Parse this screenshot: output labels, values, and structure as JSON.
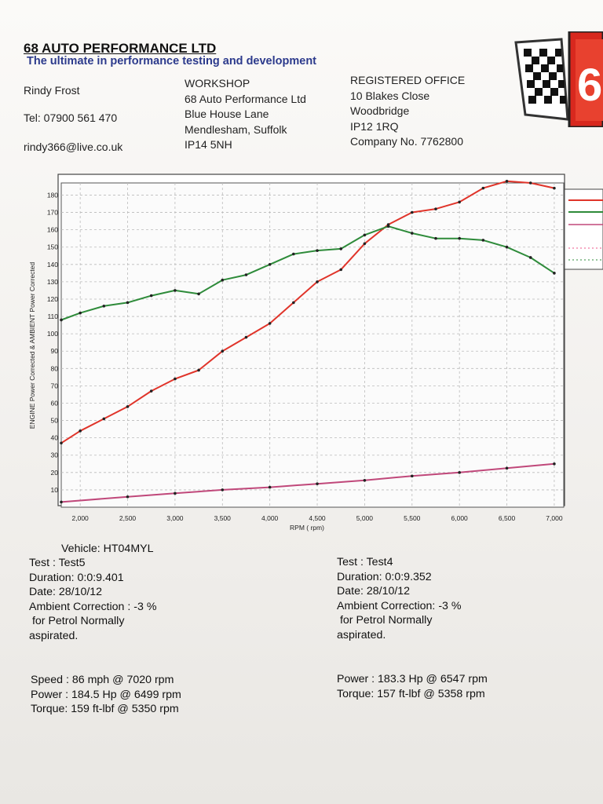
{
  "header": {
    "company": "68 AUTO PERFORMANCE LTD",
    "tagline": "The ultimate in performance testing and development",
    "contact": {
      "name": "Rindy Frost",
      "tel": "Tel: 07900 561 470",
      "email": "rindy366@live.co.uk"
    },
    "workshop": [
      "WORKSHOP",
      "68 Auto Performance Ltd",
      "Blue House Lane",
      "Mendlesham, Suffolk",
      "IP14 5NH"
    ],
    "office": [
      "REGISTERED OFFICE",
      "10 Blakes Close",
      "Woodbridge",
      "IP12 1RQ",
      "Company No. 7762800"
    ],
    "logo_text": "6"
  },
  "colors": {
    "power": "#e0342a",
    "torque": "#2e8b3a",
    "speed": "#c0487a",
    "points": "#222222",
    "grid": "#bbbbbb",
    "logo_red": "#d8281e",
    "tagline": "#2c3a8c"
  },
  "chart_data": {
    "type": "line",
    "ylabel": "ENGINE Power Corrected & AMBIENT Power Corrected",
    "xlabel": "RPM ( rpm)",
    "xlim": [
      1800,
      7100
    ],
    "ylim": [
      0,
      187
    ],
    "xticks": [
      2000,
      2500,
      3000,
      3500,
      4000,
      4500,
      5000,
      5500,
      6000,
      6500,
      7000
    ],
    "xtick_labels": [
      "2,000",
      "2,500",
      "3,000",
      "3,500",
      "4,000",
      "4,500",
      "5,000",
      "5,500",
      "6,000",
      "6,500",
      "7,000"
    ],
    "yticks": [
      10,
      20,
      30,
      40,
      50,
      60,
      70,
      80,
      90,
      100,
      110,
      120,
      130,
      140,
      150,
      160,
      170,
      180
    ],
    "grid": true,
    "series": [
      {
        "key": "power",
        "color": "#e0342a",
        "x": [
          1800,
          2000,
          2250,
          2500,
          2750,
          3000,
          3250,
          3500,
          3750,
          4000,
          4250,
          4500,
          4750,
          5000,
          5250,
          5500,
          5750,
          6000,
          6250,
          6500,
          6750,
          7000
        ],
        "values": [
          37,
          44,
          51,
          58,
          67,
          74,
          79,
          90,
          98,
          106,
          118,
          130,
          137,
          152,
          163,
          170,
          172,
          176,
          184,
          188,
          187,
          184
        ]
      },
      {
        "key": "torque",
        "color": "#2e8b3a",
        "x": [
          1800,
          2000,
          2250,
          2500,
          2750,
          3000,
          3250,
          3500,
          3750,
          4000,
          4250,
          4500,
          4750,
          5000,
          5250,
          5500,
          5750,
          6000,
          6250,
          6500,
          6750,
          7000
        ],
        "values": [
          108,
          112,
          116,
          118,
          122,
          125,
          123,
          131,
          134,
          140,
          146,
          148,
          149,
          157,
          162,
          158,
          155,
          155,
          154,
          150,
          144,
          135
        ]
      },
      {
        "key": "speed",
        "color": "#c0487a",
        "x": [
          1800,
          2500,
          3000,
          3500,
          4000,
          4500,
          5000,
          5500,
          6000,
          6500,
          7000
        ],
        "values": [
          3,
          6,
          8,
          10,
          11.5,
          13.5,
          15.5,
          18,
          20,
          22.5,
          25
        ]
      }
    ]
  },
  "test_left": {
    "vehicle": "Vehicle: HT04MYL",
    "test": "Test    : Test5",
    "duration": "Duration: 0:0:9.401",
    "date": "Date: 28/10/12",
    "ambient": "Ambient Correction : -3 %",
    "for": " for Petrol Normally",
    "aspirated": "aspirated.",
    "speed": "Speed : 86 mph @ 7020 rpm",
    "power": "Power : 184.5 Hp @ 6499 rpm",
    "torque": "Torque: 159 ft-lbf @ 5350 rpm"
  },
  "test_right": {
    "test": "Test    : Test4",
    "duration": "Duration: 0:0:9.352",
    "date": "Date: 28/10/12",
    "ambient": "Ambient Correction: -3 %",
    "for": " for Petrol Normally",
    "aspirated": "aspirated.",
    "power": "Power : 183.3 Hp @ 6547 rpm",
    "torque": "Torque: 157 ft-lbf @ 5358 rpm"
  }
}
